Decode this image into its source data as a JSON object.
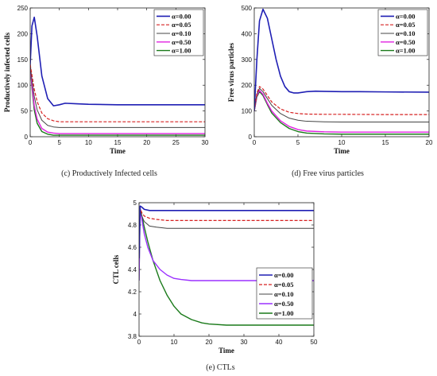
{
  "chart_data": [
    {
      "id": "c",
      "type": "line",
      "caption": "(c) Productively Infected cells",
      "xlabel": "Time",
      "ylabel": "Productively infected cells",
      "xlim": [
        0,
        30
      ],
      "ylim": [
        0,
        250
      ],
      "xticks": [
        0,
        5,
        10,
        15,
        20,
        25,
        30
      ],
      "yticks": [
        0,
        50,
        100,
        150,
        200,
        250
      ],
      "legend_position": "top-right",
      "series": [
        {
          "name": "α=0.00",
          "color": "#1f1fb4",
          "dash": "",
          "width": 1.6,
          "x": [
            0,
            0.3,
            0.7,
            1.2,
            2,
            3,
            4,
            5,
            6,
            8,
            10,
            15,
            20,
            25,
            30
          ],
          "y": [
            140,
            215,
            232,
            195,
            118,
            74,
            60,
            62,
            65,
            64,
            63,
            62,
            62,
            62,
            62
          ]
        },
        {
          "name": "α=0.05",
          "color": "#d62020",
          "dash": "4,2",
          "width": 1.2,
          "x": [
            0,
            0.3,
            0.7,
            1.2,
            2,
            3,
            4,
            5,
            6,
            8,
            10,
            15,
            20,
            25,
            30
          ],
          "y": [
            140,
            120,
            92,
            68,
            46,
            35,
            31,
            29,
            29,
            29,
            29,
            29,
            29,
            29,
            29
          ]
        },
        {
          "name": "α=0.10",
          "color": "#444444",
          "dash": "",
          "width": 1.0,
          "x": [
            0,
            0.3,
            0.7,
            1.2,
            2,
            3,
            4,
            5,
            6,
            8,
            10,
            15,
            20,
            25,
            30
          ],
          "y": [
            140,
            110,
            78,
            52,
            32,
            22,
            19,
            18,
            18,
            18,
            18,
            18,
            18,
            18,
            18
          ]
        },
        {
          "name": "α=0.50",
          "color": "#e020e0",
          "dash": "",
          "width": 1.4,
          "x": [
            0,
            0.3,
            0.7,
            1.2,
            2,
            3,
            4,
            5,
            6,
            8,
            10,
            15,
            20,
            25,
            30
          ],
          "y": [
            140,
            100,
            60,
            34,
            16,
            9,
            7,
            6,
            6,
            6,
            6,
            6,
            6,
            6,
            6
          ]
        },
        {
          "name": "α=1.00",
          "color": "#1a7a1a",
          "dash": "",
          "width": 1.4,
          "x": [
            0,
            0.3,
            0.7,
            1.2,
            2,
            3,
            4,
            5,
            6,
            8,
            10,
            15,
            20,
            25,
            30
          ],
          "y": [
            140,
            95,
            52,
            26,
            10,
            5,
            3,
            3,
            3,
            3,
            3,
            3,
            3,
            3,
            3
          ]
        }
      ]
    },
    {
      "id": "d",
      "type": "line",
      "caption": "(d) Free virus particles",
      "xlabel": "Time",
      "ylabel": "Free virus particles",
      "xlim": [
        0,
        20
      ],
      "ylim": [
        0,
        500
      ],
      "xticks": [
        0,
        5,
        10,
        15,
        20
      ],
      "yticks": [
        0,
        100,
        200,
        300,
        400,
        500
      ],
      "legend_position": "top-right",
      "series": [
        {
          "name": "α=0.00",
          "color": "#1f1fb4",
          "dash": "",
          "width": 1.6,
          "x": [
            0,
            0.3,
            0.6,
            1,
            1.5,
            2,
            2.5,
            3,
            3.5,
            4,
            4.5,
            5,
            6,
            7,
            8,
            10,
            12,
            15,
            20
          ],
          "y": [
            100,
            300,
            450,
            495,
            460,
            380,
            300,
            235,
            195,
            175,
            170,
            170,
            175,
            177,
            176,
            175,
            175,
            174,
            173
          ]
        },
        {
          "name": "α=0.05",
          "color": "#d62020",
          "dash": "4,2",
          "width": 1.2,
          "x": [
            0,
            0.3,
            0.6,
            1,
            1.5,
            2,
            3,
            4,
            5,
            6,
            8,
            10,
            15,
            20
          ],
          "y": [
            100,
            170,
            195,
            185,
            160,
            135,
            108,
            95,
            90,
            88,
            87,
            87,
            86,
            86
          ]
        },
        {
          "name": "α=0.10",
          "color": "#444444",
          "dash": "",
          "width": 1.0,
          "x": [
            0,
            0.3,
            0.6,
            1,
            1.5,
            2,
            3,
            4,
            5,
            6,
            8,
            10,
            15,
            20
          ],
          "y": [
            100,
            165,
            188,
            175,
            148,
            122,
            90,
            72,
            64,
            60,
            58,
            57,
            57,
            57
          ]
        },
        {
          "name": "α=0.50",
          "color": "#e020e0",
          "dash": "",
          "width": 1.4,
          "x": [
            0,
            0.3,
            0.6,
            1,
            1.5,
            2,
            3,
            4,
            5,
            6,
            8,
            10,
            15,
            20
          ],
          "y": [
            100,
            160,
            180,
            165,
            130,
            100,
            62,
            40,
            28,
            22,
            19,
            18,
            18,
            18
          ]
        },
        {
          "name": "α=1.00",
          "color": "#1a7a1a",
          "dash": "",
          "width": 1.4,
          "x": [
            0,
            0.3,
            0.6,
            1,
            1.5,
            2,
            3,
            4,
            5,
            6,
            8,
            10,
            15,
            20
          ],
          "y": [
            100,
            155,
            175,
            160,
            125,
            92,
            55,
            32,
            20,
            14,
            11,
            10,
            10,
            10
          ]
        }
      ]
    },
    {
      "id": "e",
      "type": "line",
      "caption": "(e) CTLs",
      "xlabel": "Time",
      "ylabel": "CTL cells",
      "xlim": [
        0,
        50
      ],
      "ylim": [
        3.8,
        5
      ],
      "xticks": [
        0,
        10,
        20,
        30,
        40,
        50
      ],
      "yticks": [
        3.8,
        4,
        4.2,
        4.4,
        4.6,
        4.8,
        5
      ],
      "legend_position": "center-right",
      "series": [
        {
          "name": "α=0.00",
          "color": "#1f1fb4",
          "dash": "",
          "width": 1.6,
          "x": [
            0,
            0.3,
            0.8,
            1.5,
            3,
            5,
            10,
            20,
            30,
            40,
            50
          ],
          "y": [
            4.5,
            4.97,
            4.96,
            4.94,
            4.93,
            4.93,
            4.93,
            4.93,
            4.93,
            4.93,
            4.93
          ]
        },
        {
          "name": "α=0.05",
          "color": "#d62020",
          "dash": "4,2",
          "width": 1.2,
          "x": [
            0,
            0.3,
            0.8,
            1.5,
            3,
            5,
            8,
            10,
            20,
            30,
            40,
            50
          ],
          "y": [
            4.5,
            4.95,
            4.91,
            4.88,
            4.86,
            4.85,
            4.84,
            4.84,
            4.84,
            4.84,
            4.84,
            4.84
          ]
        },
        {
          "name": "α=0.10",
          "color": "#444444",
          "dash": "",
          "width": 1.0,
          "x": [
            0,
            0.3,
            0.8,
            1.5,
            3,
            5,
            8,
            10,
            20,
            30,
            40,
            50
          ],
          "y": [
            4.5,
            4.94,
            4.88,
            4.83,
            4.79,
            4.78,
            4.77,
            4.77,
            4.77,
            4.77,
            4.77,
            4.77
          ]
        },
        {
          "name": "α=0.50",
          "color": "#9b30ff",
          "dash": "",
          "width": 1.4,
          "x": [
            0,
            0.3,
            0.8,
            1.5,
            2.5,
            4,
            6,
            8,
            10,
            12,
            15,
            20,
            25,
            30,
            40,
            50
          ],
          "y": [
            4.3,
            4.95,
            4.85,
            4.72,
            4.6,
            4.48,
            4.4,
            4.35,
            4.32,
            4.31,
            4.3,
            4.3,
            4.3,
            4.3,
            4.3,
            4.3
          ]
        },
        {
          "name": "α=1.00",
          "color": "#1a7a1a",
          "dash": "",
          "width": 1.4,
          "x": [
            0,
            0.3,
            0.8,
            1.5,
            2.5,
            4,
            6,
            8,
            10,
            12,
            15,
            18,
            20,
            25,
            30,
            40,
            50
          ],
          "y": [
            4.3,
            4.95,
            4.88,
            4.78,
            4.65,
            4.48,
            4.3,
            4.17,
            4.07,
            4.0,
            3.95,
            3.92,
            3.91,
            3.9,
            3.9,
            3.9,
            3.9
          ]
        }
      ]
    }
  ]
}
